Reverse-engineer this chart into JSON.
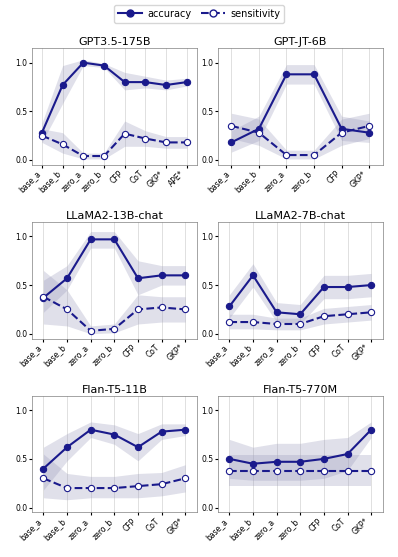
{
  "subplots": [
    {
      "title": "GPT3.5-175B",
      "x_labels": [
        "base_a",
        "base_b",
        "zero_a",
        "zero_b",
        "CFP",
        "CoT",
        "GKP*",
        "APE*"
      ],
      "accuracy": [
        0.28,
        0.77,
        1.0,
        0.97,
        0.8,
        0.8,
        0.77,
        0.8
      ],
      "accuracy_lo": [
        0.18,
        0.58,
        0.97,
        0.95,
        0.72,
        0.74,
        0.72,
        0.76
      ],
      "accuracy_hi": [
        0.38,
        0.97,
        1.03,
        0.99,
        0.9,
        0.86,
        0.82,
        0.84
      ],
      "sensitivity": [
        0.25,
        0.16,
        0.04,
        0.04,
        0.27,
        0.22,
        0.18,
        0.18
      ],
      "sensitivity_lo": [
        0.18,
        0.07,
        0.01,
        0.01,
        0.14,
        0.14,
        0.12,
        0.12
      ],
      "sensitivity_hi": [
        0.32,
        0.28,
        0.07,
        0.07,
        0.4,
        0.3,
        0.24,
        0.24
      ]
    },
    {
      "title": "GPT-JT-6B",
      "x_labels": [
        "base_a",
        "base_b",
        "zero_a",
        "zero_b",
        "CFP",
        "GKP*"
      ],
      "accuracy": [
        0.18,
        0.32,
        0.88,
        0.88,
        0.32,
        0.28
      ],
      "accuracy_lo": [
        0.08,
        0.2,
        0.78,
        0.78,
        0.2,
        0.18
      ],
      "accuracy_hi": [
        0.3,
        0.45,
        0.98,
        0.98,
        0.45,
        0.4
      ],
      "sensitivity": [
        0.35,
        0.28,
        0.05,
        0.05,
        0.28,
        0.35
      ],
      "sensitivity_lo": [
        0.22,
        0.15,
        0.01,
        0.01,
        0.15,
        0.22
      ],
      "sensitivity_hi": [
        0.48,
        0.42,
        0.1,
        0.1,
        0.42,
        0.48
      ]
    },
    {
      "title": "LLaMA2-13B-chat",
      "x_labels": [
        "base_a",
        "base_b",
        "zero_a",
        "zero_b",
        "CFP",
        "CoT",
        "GKP*"
      ],
      "accuracy": [
        0.37,
        0.57,
        0.97,
        0.97,
        0.57,
        0.6,
        0.6
      ],
      "accuracy_lo": [
        0.22,
        0.45,
        0.88,
        0.88,
        0.4,
        0.5,
        0.5
      ],
      "accuracy_hi": [
        0.55,
        0.7,
        1.05,
        1.05,
        0.75,
        0.7,
        0.7
      ],
      "sensitivity": [
        0.38,
        0.25,
        0.03,
        0.05,
        0.25,
        0.27,
        0.25
      ],
      "sensitivity_lo": [
        0.1,
        0.08,
        0.0,
        0.01,
        0.1,
        0.12,
        0.12
      ],
      "sensitivity_hi": [
        0.65,
        0.45,
        0.08,
        0.1,
        0.4,
        0.38,
        0.38
      ]
    },
    {
      "title": "LLaMA2-7B-chat",
      "x_labels": [
        "base_a",
        "base_b",
        "zero_a",
        "zero_b",
        "CFP",
        "CoT",
        "GKP*"
      ],
      "accuracy": [
        0.28,
        0.6,
        0.22,
        0.2,
        0.48,
        0.48,
        0.5
      ],
      "accuracy_lo": [
        0.16,
        0.48,
        0.12,
        0.1,
        0.36,
        0.36,
        0.38
      ],
      "accuracy_hi": [
        0.4,
        0.72,
        0.32,
        0.3,
        0.6,
        0.6,
        0.62
      ],
      "sensitivity": [
        0.12,
        0.12,
        0.1,
        0.1,
        0.18,
        0.2,
        0.22
      ],
      "sensitivity_lo": [
        0.05,
        0.05,
        0.04,
        0.04,
        0.1,
        0.12,
        0.14
      ],
      "sensitivity_hi": [
        0.2,
        0.2,
        0.16,
        0.16,
        0.26,
        0.28,
        0.3
      ]
    },
    {
      "title": "Flan-T5-11B",
      "x_labels": [
        "base_a",
        "base_b",
        "zero_a",
        "zero_b",
        "CFP",
        "CoT",
        "GKP*"
      ],
      "accuracy": [
        0.4,
        0.62,
        0.8,
        0.75,
        0.62,
        0.78,
        0.8
      ],
      "accuracy_lo": [
        0.18,
        0.48,
        0.72,
        0.65,
        0.48,
        0.7,
        0.74
      ],
      "accuracy_hi": [
        0.62,
        0.76,
        0.88,
        0.85,
        0.76,
        0.86,
        0.86
      ],
      "sensitivity": [
        0.3,
        0.2,
        0.2,
        0.2,
        0.22,
        0.24,
        0.3
      ],
      "sensitivity_lo": [
        0.1,
        0.08,
        0.1,
        0.1,
        0.1,
        0.12,
        0.16
      ],
      "sensitivity_hi": [
        0.55,
        0.35,
        0.32,
        0.32,
        0.35,
        0.36,
        0.44
      ]
    },
    {
      "title": "Flan-T5-770M",
      "x_labels": [
        "base_a",
        "base_b",
        "zero_a",
        "zero_b",
        "CFP",
        "CoT",
        "GKP*"
      ],
      "accuracy": [
        0.5,
        0.45,
        0.47,
        0.47,
        0.5,
        0.55,
        0.8
      ],
      "accuracy_lo": [
        0.3,
        0.28,
        0.28,
        0.28,
        0.3,
        0.38,
        0.72
      ],
      "accuracy_hi": [
        0.7,
        0.62,
        0.66,
        0.66,
        0.7,
        0.72,
        0.88
      ],
      "sensitivity": [
        0.38,
        0.38,
        0.38,
        0.38,
        0.38,
        0.38,
        0.38
      ],
      "sensitivity_lo": [
        0.22,
        0.22,
        0.22,
        0.22,
        0.22,
        0.22,
        0.22
      ],
      "sensitivity_hi": [
        0.54,
        0.54,
        0.54,
        0.54,
        0.54,
        0.54,
        0.54
      ]
    }
  ],
  "line_color": "#1a1a8c",
  "fill_color": "#9999bb",
  "fill_alpha": 0.3,
  "line_width": 1.5,
  "marker_size": 4.5,
  "title_fontsize": 8,
  "tick_fontsize": 5.5,
  "legend_fontsize": 7
}
